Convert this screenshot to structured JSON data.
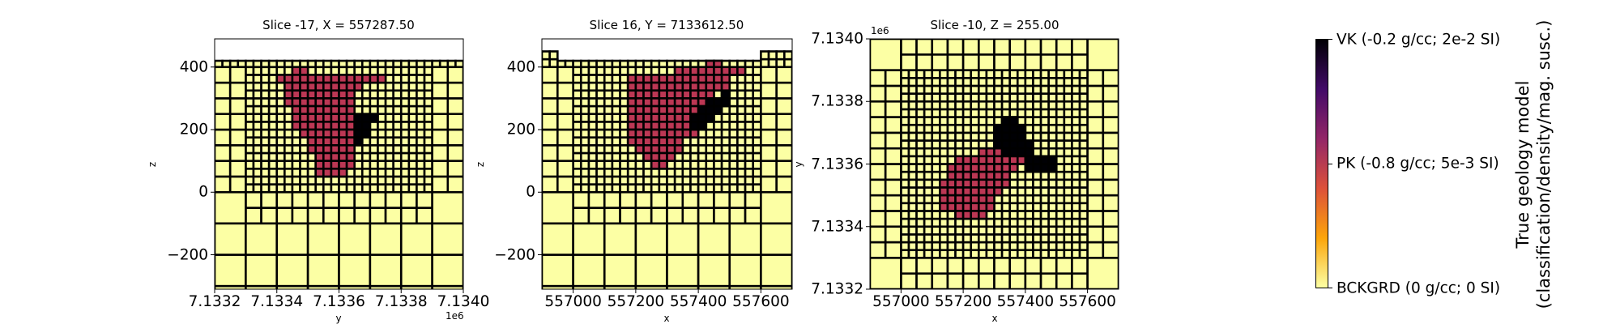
{
  "chart_data": [
    {
      "type": "heatmap",
      "title": "Slice -17, X = 557287.50",
      "xlabel": "y",
      "ylabel": "z",
      "offset_label": "1e6",
      "xlim": [
        7133200,
        7134000
      ],
      "ylim": [
        -310,
        490
      ],
      "xticks": [
        7133200,
        7133400,
        7133600,
        7133800,
        7134000
      ],
      "xtick_labels": [
        "7.1332",
        "7.1334",
        "7.1336",
        "7.1338",
        "7.1340"
      ],
      "yticks": [
        400,
        200,
        0,
        -200
      ],
      "ytick_labels": [
        "400",
        "200",
        "0",
        "−200"
      ],
      "surface": 420,
      "mesh_blocks": [
        [
          7133300,
          7133900,
          0,
          400,
          25
        ],
        [
          7133200,
          7134000,
          400,
          420,
          25
        ],
        [
          7133200,
          7133300,
          0,
          400,
          50
        ],
        [
          7133900,
          7134000,
          0,
          400,
          50
        ],
        [
          7133300,
          7133900,
          -100,
          0,
          50
        ],
        [
          7133200,
          7133300,
          -100,
          0,
          100
        ],
        [
          7133900,
          7134000,
          -100,
          0,
          100
        ],
        [
          7133200,
          7134000,
          -400,
          -100,
          100
        ]
      ],
      "fine_origin": [
        7133300,
        425
      ],
      "fine_cell": 25,
      "units": [
        {
          "unit": "PK",
          "rows": [
            [
              1,
              6,
              7
            ],
            [
              2,
              4,
              17
            ],
            [
              3,
              5,
              14
            ],
            [
              4,
              5,
              13
            ],
            [
              5,
              5,
              13
            ],
            [
              6,
              6,
              13
            ],
            [
              7,
              6,
              13
            ],
            [
              8,
              6,
              13
            ],
            [
              9,
              7,
              13
            ],
            [
              10,
              8,
              13
            ],
            [
              11,
              8,
              13
            ],
            [
              12,
              9,
              13
            ],
            [
              13,
              9,
              13
            ],
            [
              14,
              9,
              12
            ]
          ]
        },
        {
          "unit": "VK",
          "rows": [
            [
              7,
              14,
              16
            ],
            [
              8,
              14,
              15
            ],
            [
              9,
              14,
              15
            ],
            [
              10,
              14,
              14
            ]
          ]
        }
      ]
    },
    {
      "type": "heatmap",
      "title": "Slice 16, Y = 7133612.50",
      "xlabel": "x",
      "ylabel": "z",
      "xlim": [
        556900,
        557700
      ],
      "ylim": [
        -310,
        490
      ],
      "xticks": [
        557000,
        557200,
        557400,
        557600
      ],
      "xtick_labels": [
        "557000",
        "557200",
        "557400",
        "557600"
      ],
      "yticks": [
        400,
        200,
        0,
        -200
      ],
      "ytick_labels": [
        "400",
        "200",
        "0",
        "−200"
      ],
      "surface": 420,
      "mesh_blocks": [
        [
          557000,
          557600,
          0,
          400,
          25
        ],
        [
          556950,
          557600,
          400,
          420,
          25
        ],
        [
          556900,
          556950,
          400,
          450,
          25
        ],
        [
          557600,
          557700,
          400,
          450,
          25
        ],
        [
          556900,
          557000,
          0,
          400,
          50
        ],
        [
          557600,
          557700,
          0,
          400,
          50
        ],
        [
          557000,
          557600,
          -100,
          0,
          50
        ],
        [
          556900,
          557000,
          -100,
          0,
          100
        ],
        [
          557600,
          557700,
          -100,
          0,
          100
        ],
        [
          556900,
          557700,
          -400,
          -100,
          100
        ]
      ],
      "fine_origin": [
        557000,
        425
      ],
      "fine_cell": 25,
      "units": [
        {
          "unit": "PK",
          "rows": [
            [
              0,
              17,
              18
            ],
            [
              1,
              13,
              21
            ],
            [
              2,
              7,
              19
            ],
            [
              3,
              7,
              19
            ],
            [
              4,
              7,
              17
            ],
            [
              5,
              7,
              16
            ],
            [
              6,
              7,
              15
            ],
            [
              7,
              7,
              14
            ],
            [
              8,
              7,
              14
            ],
            [
              9,
              7,
              15
            ],
            [
              10,
              7,
              13
            ],
            [
              11,
              8,
              13
            ],
            [
              12,
              9,
              12
            ],
            [
              13,
              10,
              11
            ]
          ]
        },
        {
          "unit": "VK",
          "rows": [
            [
              4,
              19,
              19
            ],
            [
              5,
              17,
              19
            ],
            [
              6,
              16,
              18
            ],
            [
              7,
              15,
              17
            ],
            [
              8,
              15,
              16
            ]
          ]
        }
      ]
    },
    {
      "type": "heatmap",
      "title": "Slice -10, Z = 255.00",
      "xlabel": "x",
      "ylabel": "y",
      "offset_label": "1e6",
      "xlim": [
        556900,
        557700
      ],
      "ylim": [
        7133200,
        7134000
      ],
      "xticks": [
        557000,
        557200,
        557400,
        557600
      ],
      "xtick_labels": [
        "557000",
        "557200",
        "557400",
        "557600"
      ],
      "yticks": [
        7134000,
        7133800,
        7133600,
        7133400,
        7133200
      ],
      "ytick_labels": [
        "7.1340",
        "7.1338",
        "7.1336",
        "7.1334",
        "7.1332"
      ],
      "mesh_blocks": [
        [
          557000,
          557600,
          7133300,
          7133900,
          25
        ],
        [
          557000,
          557600,
          7133900,
          7134000,
          50
        ],
        [
          557000,
          557600,
          7133200,
          7133300,
          50
        ],
        [
          556900,
          557000,
          7133300,
          7133900,
          50
        ],
        [
          557600,
          557700,
          7133300,
          7133900,
          50
        ],
        [
          556900,
          557000,
          7133900,
          7134000,
          100
        ],
        [
          557600,
          557700,
          7133900,
          7134000,
          100
        ],
        [
          556900,
          557000,
          7133200,
          7133300,
          100
        ],
        [
          557600,
          557700,
          7133200,
          7133300,
          100
        ]
      ],
      "fine_origin": [
        557000,
        7133900
      ],
      "fine_cell": 25,
      "units": [
        {
          "unit": "PK",
          "rows": [
            [
              10,
              10,
              12
            ],
            [
              11,
              7,
              15
            ],
            [
              12,
              6,
              14
            ],
            [
              13,
              6,
              13
            ],
            [
              14,
              5,
              13
            ],
            [
              15,
              5,
              12
            ],
            [
              16,
              5,
              11
            ],
            [
              17,
              5,
              11
            ],
            [
              18,
              7,
              10
            ]
          ]
        },
        {
          "unit": "VK",
          "rows": [
            [
              6,
              13,
              14
            ],
            [
              7,
              12,
              15
            ],
            [
              8,
              12,
              15
            ],
            [
              9,
              12,
              16
            ],
            [
              10,
              13,
              16
            ],
            [
              11,
              16,
              19
            ],
            [
              12,
              16,
              19
            ]
          ]
        }
      ]
    }
  ],
  "colorbar": {
    "title_line1": "True geology model",
    "title_line2": "(classification/density/mag. susc.)",
    "labels": [
      "VK (-0.2 g/cc; 2e-2 SI)",
      "PK (-0.8 g/cc; 5e-3 SI)",
      "BCKGRD (0 g/cc; 0 SI)"
    ],
    "colors": {
      "VK": "#000004",
      "PK": "#bc3754",
      "BCKGRD": "#fcffa4"
    }
  }
}
